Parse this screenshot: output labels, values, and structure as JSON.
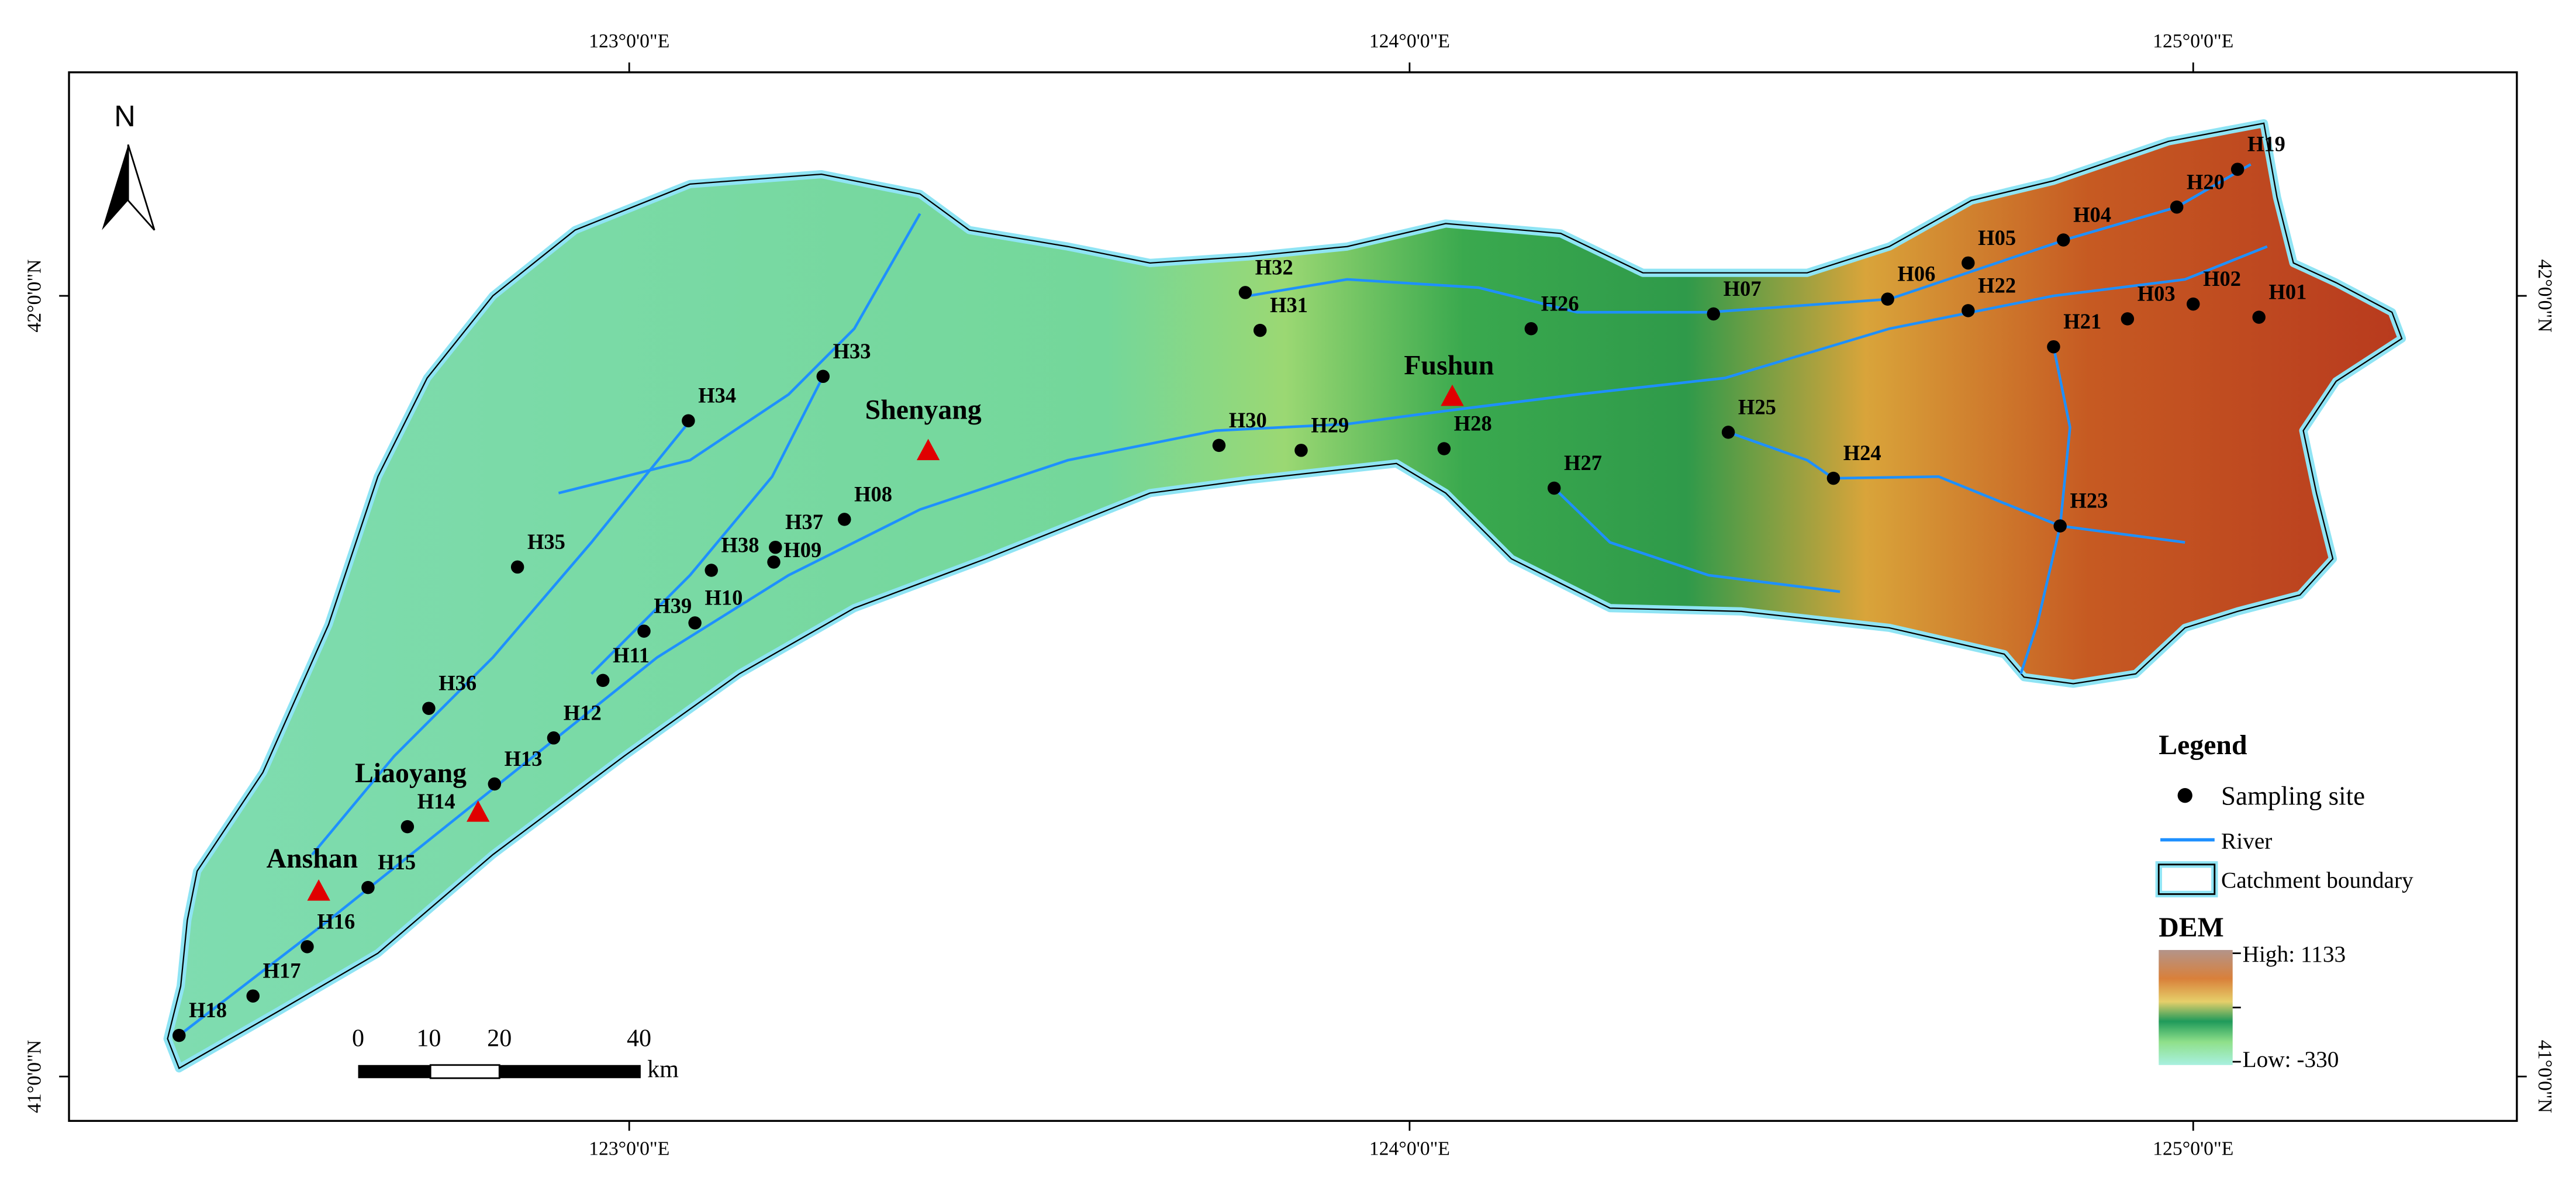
{
  "north": "N",
  "axis_labels": {
    "top": [
      "123°0'0\"E",
      "124°0'0\"E",
      "125°0'0\"E"
    ],
    "bottom": [
      "123°0'0\"E",
      "124°0'0\"E",
      "125°0'0\"E"
    ],
    "left": [
      "42°0'0\"N",
      "41°0'0\"N"
    ],
    "right": [
      "42°0'0\"N",
      "41°0'0\"N"
    ]
  },
  "cities": [
    "Shenyang",
    "Fushun",
    "Liaoyang",
    "Anshan"
  ],
  "sites": [
    "H18",
    "H17",
    "H16",
    "H15",
    "H14",
    "H13",
    "H12",
    "H11",
    "H36",
    "H39",
    "H10",
    "H38",
    "H09",
    "H37",
    "H35",
    "H08",
    "H34",
    "H33",
    "H32",
    "H31",
    "H30",
    "H29",
    "H28",
    "H27",
    "H26",
    "H07",
    "H25",
    "H24",
    "H06",
    "H22",
    "H05",
    "H04",
    "H21",
    "H23",
    "H03",
    "H02",
    "H01",
    "H20",
    "H19"
  ],
  "scale_bar": {
    "ticks": [
      0,
      10,
      20,
      40
    ],
    "unit": "km"
  },
  "legend": {
    "title": "Legend",
    "items": [
      "Sampling site",
      "River",
      "Catchment boundary"
    ],
    "dem_title": "DEM",
    "dem_high": "High: 1133",
    "dem_low": "Low: -330"
  }
}
